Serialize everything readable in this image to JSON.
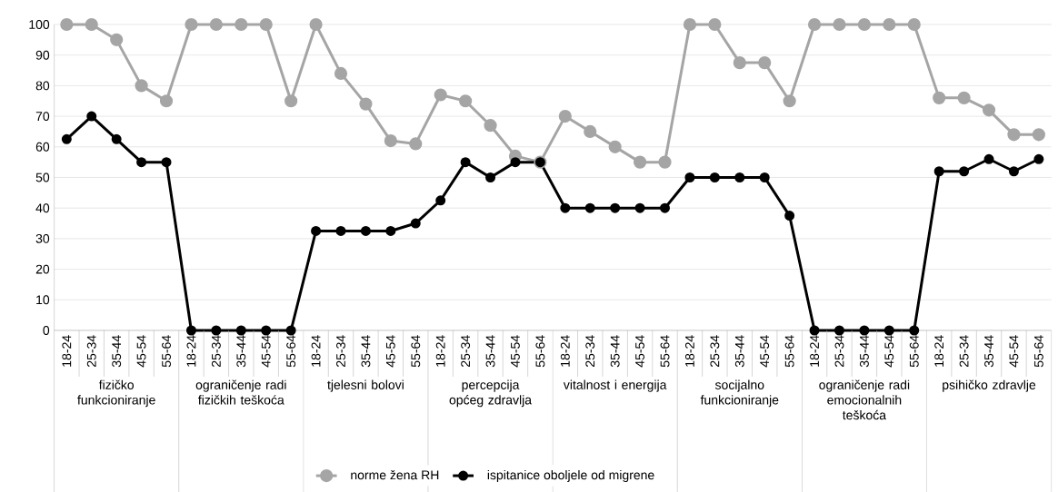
{
  "chart_data": {
    "type": "line",
    "categories": [
      "18-24",
      "25-34",
      "35-44",
      "45-54",
      "55-64",
      "18-24",
      "25-34",
      "35-44",
      "45-54",
      "55-64",
      "18-24",
      "25-34",
      "35-44",
      "45-54",
      "55-64",
      "18-24",
      "25-34",
      "35-44",
      "45-54",
      "55-64",
      "18-24",
      "25-34",
      "35-44",
      "45-54",
      "55-64",
      "18-24",
      "25-34",
      "35-44",
      "45-54",
      "55-64",
      "18-24",
      "25-34",
      "35-44",
      "45-54",
      "55-64",
      "18-24",
      "25-34",
      "35-44",
      "45-54",
      "55-64"
    ],
    "series": [
      {
        "name": "norme žena RH",
        "color": "#a5a5a5",
        "values": [
          100,
          100,
          95,
          80,
          75,
          100,
          100,
          100,
          100,
          75,
          100,
          84,
          74,
          62,
          61,
          77,
          75,
          67,
          57,
          55,
          70,
          65,
          60,
          55,
          55,
          100,
          100,
          87.5,
          87.5,
          75,
          100,
          100,
          100,
          100,
          100,
          76,
          76,
          72,
          64,
          64
        ]
      },
      {
        "name": "ispitanice oboljele od migrene",
        "color": "#000000",
        "values": [
          62.5,
          70,
          62.5,
          55,
          55,
          0,
          0,
          0,
          0,
          0,
          32.5,
          32.5,
          32.5,
          32.5,
          35,
          42.5,
          55,
          50,
          55,
          55,
          40,
          40,
          40,
          40,
          40,
          50,
          50,
          50,
          50,
          37.5,
          0,
          0,
          0,
          0,
          0,
          52,
          52,
          56,
          52,
          56
        ]
      }
    ],
    "annotations": [
      "fizičko funkcioniranje",
      "ograničenje radi fizičkih teškoća",
      "tjelesni bolovi",
      "percepcija općeg zdravlja",
      "vitalnost i energija",
      "socijalno funkcioniranje",
      "ograničenje radi emocionalnih teškoća",
      "psihičko zdravlje"
    ],
    "ylim": [
      0,
      100
    ],
    "yticks": [
      0,
      10,
      20,
      30,
      40,
      50,
      60,
      70,
      80,
      90,
      100
    ],
    "grid": "y",
    "legend": "bottom",
    "marker": "circle",
    "line_style": "solid"
  }
}
